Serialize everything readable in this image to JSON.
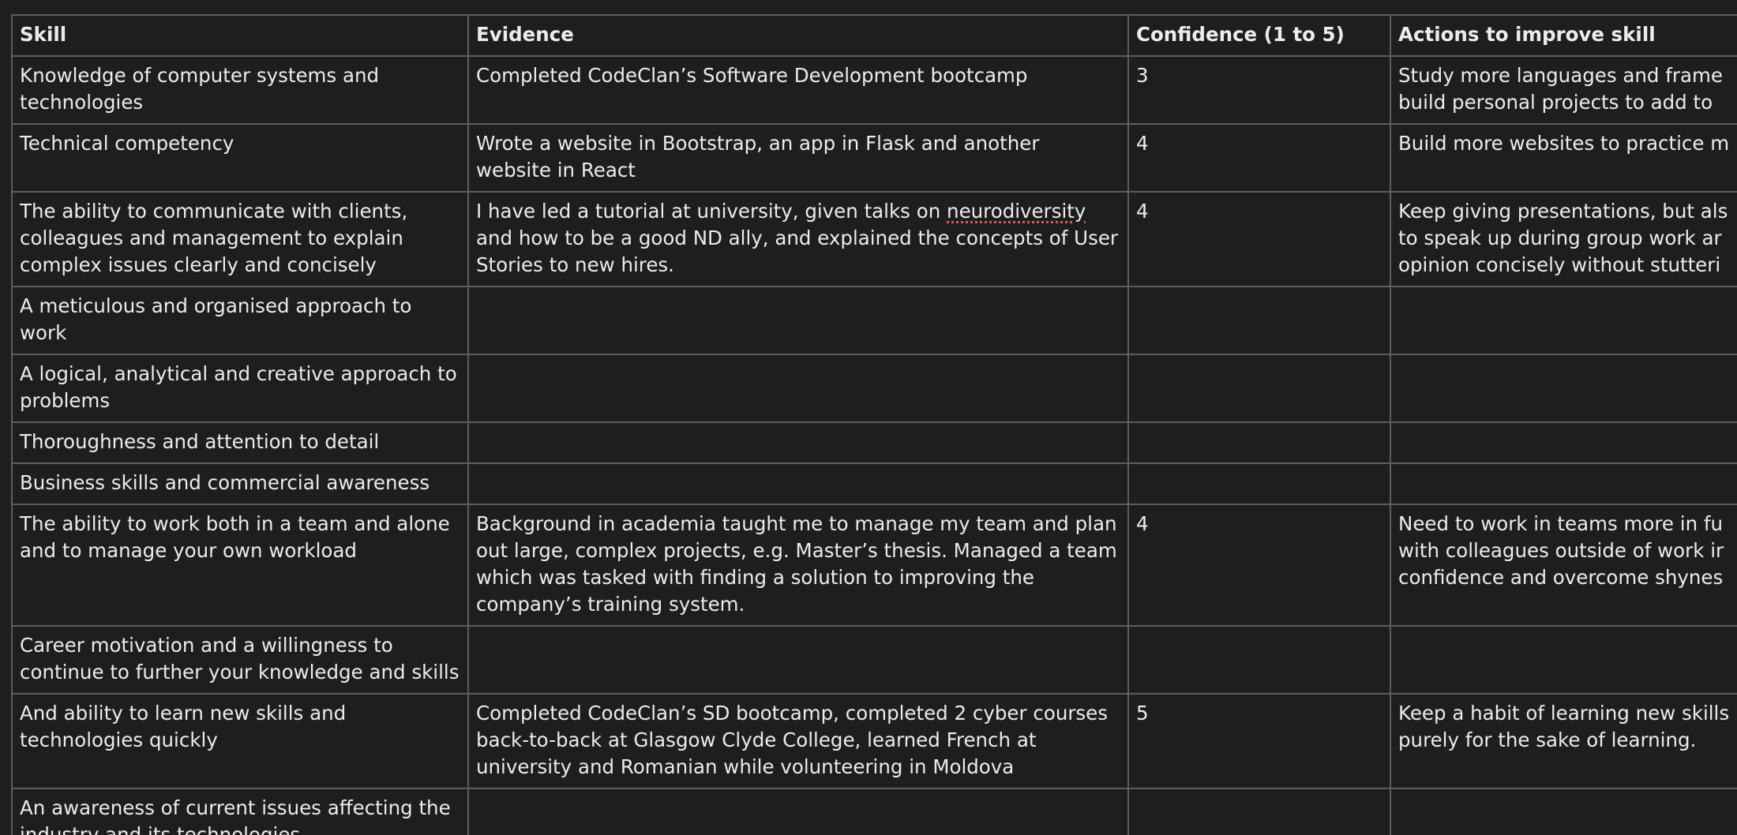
{
  "table": {
    "headers": [
      "Skill",
      "Evidence",
      "Confidence (1 to 5)",
      "Actions to improve skill"
    ],
    "rows": [
      {
        "skill": "Knowledge of computer systems and technologies",
        "evidence": "Completed CodeClan’s Software Development bootcamp",
        "confidence": "3",
        "actions_lines": [
          "Study more languages and frame",
          "build personal projects to add to"
        ]
      },
      {
        "skill": "Technical competency",
        "evidence": "Wrote a website in Bootstrap, an app in Flask and another website in React",
        "confidence": "4",
        "actions_lines": [
          "Build more websites to practice m"
        ]
      },
      {
        "skill": "The ability to communicate with clients, colleagues and management to explain complex issues clearly and concisely",
        "evidence_parts": {
          "before": "I have led a tutorial at university, given talks on ",
          "flagged_word": "neurodiversity",
          "after": " and how to be a good ND ally, and explained the concepts of User Stories to new hires."
        },
        "confidence": "4",
        "actions_lines": [
          "Keep giving presentations, but als",
          "to speak up during group work ar",
          "opinion concisely without stutteri"
        ]
      },
      {
        "skill": "A meticulous and organised approach to work",
        "evidence": "",
        "confidence": "",
        "actions_lines": []
      },
      {
        "skill": "A logical, analytical and creative approach to problems",
        "evidence": "",
        "confidence": "",
        "actions_lines": []
      },
      {
        "skill": "Thoroughness and attention to detail",
        "evidence": "",
        "confidence": "",
        "actions_lines": []
      },
      {
        "skill": "Business skills and commercial awareness",
        "evidence": "",
        "confidence": "",
        "actions_lines": []
      },
      {
        "skill": "The ability to work both in a team and alone and to manage your own workload",
        "evidence": "Background in academia taught me to manage my team and plan out large, complex projects, e.g. Master’s thesis. Managed a team which was tasked with finding a solution to improving the company’s training system.",
        "confidence": "4",
        "actions_lines": [
          "Need to work in teams more in fu",
          "with colleagues outside of work ir",
          "confidence and overcome shynes"
        ]
      },
      {
        "skill": "Career motivation and a willingness to continue to further your knowledge and skills",
        "evidence": "",
        "confidence": "",
        "actions_lines": []
      },
      {
        "skill": "And ability to learn new skills and technologies quickly",
        "evidence": "Completed CodeClan’s SD bootcamp, completed 2 cyber courses back-to-back at Glasgow Clyde College, learned French at university and Romanian while volunteering in Moldova",
        "confidence": "5",
        "actions_lines": [
          "Keep a habit of learning new skills",
          "purely for the sake of learning."
        ]
      },
      {
        "skill": "An awareness of current issues affecting the industry and its technologies",
        "evidence": "",
        "confidence": "",
        "actions_lines": []
      }
    ]
  }
}
